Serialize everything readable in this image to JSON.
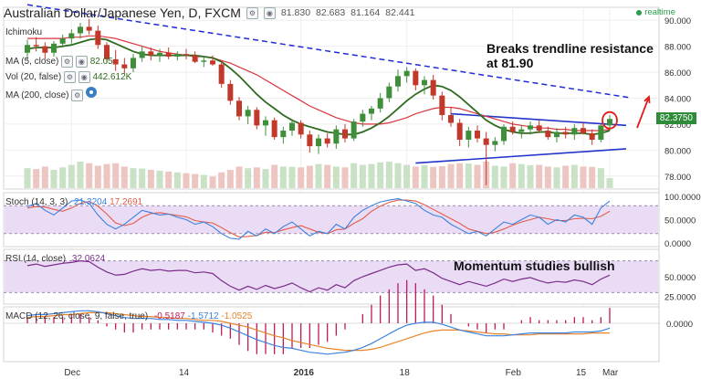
{
  "header": {
    "title": "Australian Dollar/Japanese Yen, D, FXCM",
    "ohlc_values": [
      "81.830",
      "82.683",
      "81.164",
      "82.441"
    ],
    "realtime_label": "realtime"
  },
  "indicator_legends": {
    "ichimoku": "Ichimoku",
    "sma5": "MA (5, close)",
    "sma5_value": "82.05",
    "vol": "Vol (20, false)",
    "vol_value": "442.612K",
    "sma200": "MA (200, close)"
  },
  "annotations": {
    "breakout_line1": "Breaks trendline resistance",
    "breakout_line2": "at 81.90",
    "momentum": "Momentum studies bullish"
  },
  "last_price": "82.3750",
  "colors": {
    "up": "#3f8f3a",
    "down": "#c0392b",
    "ma_green": "#2e6b1f",
    "ma_red": "#d9363e",
    "trend_dashed": "#1f2bd6",
    "trend_solid": "#2234c9",
    "stoch_k": "#3b82e0",
    "stoch_d": "#e25c4a",
    "rsi": "#7a2c8a",
    "macd": "#3b82e0",
    "signal": "#e8842a",
    "hist": "#c2185b",
    "panel_bg": "#eadcf5",
    "arrow": "#e01b1b"
  },
  "chart_data": {
    "type": "candlestick",
    "x_tick_labels": [
      "Dec",
      "14",
      "2016",
      "18",
      "Feb",
      "15",
      "Mar"
    ],
    "candles": [
      [
        87.5,
        88.5,
        86.9,
        88.1
      ],
      [
        88.1,
        88.7,
        87.6,
        88.0
      ],
      [
        88.0,
        88.3,
        87.0,
        87.5
      ],
      [
        87.5,
        88.4,
        87.2,
        88.2
      ],
      [
        88.2,
        88.9,
        87.9,
        88.6
      ],
      [
        88.6,
        89.3,
        88.2,
        89.0
      ],
      [
        89.0,
        89.8,
        88.6,
        89.5
      ],
      [
        89.5,
        90.1,
        88.9,
        89.2
      ],
      [
        89.2,
        89.6,
        87.8,
        88.1
      ],
      [
        88.1,
        88.3,
        86.7,
        87.0
      ],
      [
        87.0,
        87.7,
        86.1,
        86.6
      ],
      [
        86.6,
        87.1,
        85.9,
        86.3
      ],
      [
        86.3,
        87.4,
        86.0,
        87.1
      ],
      [
        87.1,
        88.0,
        86.8,
        87.6
      ],
      [
        87.6,
        87.9,
        86.9,
        87.3
      ],
      [
        87.3,
        87.8,
        86.8,
        87.5
      ],
      [
        87.5,
        87.9,
        87.0,
        87.2
      ],
      [
        87.2,
        87.6,
        86.9,
        87.4
      ],
      [
        87.4,
        87.8,
        87.0,
        87.3
      ],
      [
        87.3,
        87.6,
        86.7,
        86.8
      ],
      [
        86.8,
        87.2,
        86.4,
        86.9
      ],
      [
        86.9,
        87.3,
        86.5,
        86.6
      ],
      [
        86.6,
        86.9,
        84.8,
        85.1
      ],
      [
        85.1,
        85.4,
        83.5,
        83.8
      ],
      [
        83.8,
        84.1,
        82.3,
        82.6
      ],
      [
        82.6,
        83.4,
        82.0,
        83.1
      ],
      [
        83.1,
        83.3,
        81.6,
        81.9
      ],
      [
        81.9,
        82.6,
        81.1,
        82.3
      ],
      [
        82.3,
        82.5,
        80.8,
        81.0
      ],
      [
        81.0,
        81.8,
        80.5,
        81.5
      ],
      [
        81.5,
        82.4,
        81.1,
        82.1
      ],
      [
        82.1,
        82.3,
        80.9,
        81.2
      ],
      [
        81.2,
        81.5,
        79.8,
        80.3
      ],
      [
        80.3,
        81.2,
        79.7,
        80.9
      ],
      [
        80.9,
        81.3,
        80.2,
        80.5
      ],
      [
        80.5,
        81.9,
        80.1,
        81.6
      ],
      [
        81.6,
        82.0,
        80.6,
        80.9
      ],
      [
        80.9,
        82.4,
        80.7,
        82.2
      ],
      [
        82.2,
        83.1,
        81.8,
        82.8
      ],
      [
        82.8,
        83.4,
        82.3,
        83.2
      ],
      [
        83.2,
        84.4,
        82.9,
        84.0
      ],
      [
        84.0,
        85.2,
        83.7,
        84.9
      ],
      [
        84.9,
        86.2,
        84.5,
        85.7
      ],
      [
        85.7,
        86.4,
        85.2,
        86.1
      ],
      [
        86.1,
        86.3,
        84.6,
        85.0
      ],
      [
        85.0,
        85.7,
        84.3,
        85.4
      ],
      [
        85.4,
        85.8,
        83.9,
        84.2
      ],
      [
        84.2,
        84.5,
        82.3,
        82.7
      ],
      [
        82.7,
        83.3,
        81.8,
        82.1
      ],
      [
        82.1,
        82.4,
        80.3,
        80.8
      ],
      [
        80.8,
        81.8,
        80.2,
        81.5
      ],
      [
        81.5,
        81.9,
        80.6,
        80.9
      ],
      [
        80.9,
        81.4,
        77.3,
        80.4
      ],
      [
        80.4,
        81.0,
        79.9,
        80.7
      ],
      [
        80.7,
        82.0,
        80.4,
        81.8
      ],
      [
        81.8,
        82.2,
        81.2,
        81.4
      ],
      [
        81.4,
        81.9,
        80.9,
        81.6
      ],
      [
        81.6,
        82.2,
        81.2,
        81.9
      ],
      [
        81.9,
        82.3,
        81.3,
        81.5
      ],
      [
        81.5,
        81.8,
        80.8,
        81.0
      ],
      [
        81.0,
        81.7,
        80.6,
        81.4
      ],
      [
        81.4,
        81.8,
        80.9,
        81.2
      ],
      [
        81.2,
        82.0,
        80.8,
        81.7
      ],
      [
        81.7,
        82.1,
        81.2,
        81.3
      ],
      [
        81.3,
        81.6,
        80.4,
        80.8
      ],
      [
        80.8,
        82.0,
        80.6,
        81.9
      ],
      [
        81.9,
        82.7,
        81.5,
        82.4
      ]
    ],
    "volume": [
      120,
      115,
      130,
      110,
      125,
      140,
      160,
      150,
      135,
      145,
      150,
      130,
      120,
      118,
      110,
      105,
      100,
      95,
      90,
      85,
      80,
      70,
      95,
      110,
      130,
      120,
      125,
      115,
      140,
      130,
      128,
      125,
      135,
      145,
      140,
      130,
      125,
      150,
      140,
      145,
      155,
      160,
      150,
      140,
      130,
      138,
      128,
      132,
      145,
      150,
      148,
      140,
      160,
      135,
      130,
      150,
      145,
      138,
      140,
      130,
      125,
      135,
      140,
      130,
      128,
      120,
      60
    ],
    "ma_green": [
      87.8,
      87.9,
      87.9,
      87.9,
      88.0,
      88.1,
      88.3,
      88.5,
      88.6,
      88.5,
      88.2,
      87.9,
      87.6,
      87.4,
      87.3,
      87.3,
      87.3,
      87.3,
      87.3,
      87.3,
      87.2,
      87.1,
      86.8,
      86.3,
      85.7,
      85.0,
      84.3,
      83.7,
      83.2,
      82.7,
      82.3,
      82.0,
      81.8,
      81.6,
      81.4,
      81.3,
      81.2,
      81.2,
      81.4,
      81.7,
      82.1,
      82.6,
      83.2,
      83.8,
      84.3,
      84.7,
      85.0,
      84.9,
      84.6,
      84.1,
      83.5,
      82.9,
      82.3,
      81.9,
      81.6,
      81.4,
      81.3,
      81.3,
      81.4,
      81.4,
      81.3,
      81.3,
      81.3,
      81.3,
      81.2,
      81.3,
      81.5
    ],
    "ma_red": [
      88.6,
      88.6,
      88.6,
      88.6,
      88.6,
      88.7,
      88.7,
      88.8,
      88.8,
      88.7,
      88.6,
      88.4,
      88.2,
      88.0,
      87.8,
      87.6,
      87.5,
      87.4,
      87.3,
      87.2,
      87.2,
      87.1,
      86.9,
      86.7,
      86.4,
      86.1,
      85.8,
      85.4,
      85.0,
      84.6,
      84.2,
      83.8,
      83.4,
      83.1,
      82.8,
      82.5,
      82.3,
      82.1,
      82.0,
      82.0,
      82.0,
      82.1,
      82.3,
      82.5,
      82.8,
      83.0,
      83.2,
      83.3,
      83.3,
      83.2,
      83.0,
      82.8,
      82.6,
      82.4,
      82.2,
      82.0,
      81.9,
      81.8,
      81.7,
      81.7,
      81.6,
      81.6,
      81.5,
      81.5,
      81.5,
      81.5,
      81.6
    ],
    "price_axis": {
      "min": 77,
      "max": 91,
      "ticks": [
        "78.000",
        "80.000",
        "82.000",
        "84.000",
        "86.000",
        "88.000",
        "90.000"
      ]
    },
    "trendlines": {
      "dashed_resistance": [
        [
          0,
          91.2
        ],
        [
          66,
          84.0
        ]
      ],
      "upper_triangle": [
        [
          48,
          82.8
        ],
        [
          66,
          81.9
        ]
      ],
      "lower_triangle": [
        [
          44,
          79.0
        ],
        [
          66,
          80.1
        ]
      ]
    },
    "stoch": {
      "label": "Stoch (14, 3, 3)",
      "k_value": "21.3204",
      "d_value": "17.2691",
      "ticks": [
        "0.0000",
        "50.0000",
        "100.0000"
      ],
      "k": [
        78,
        85,
        70,
        60,
        75,
        90,
        92,
        85,
        60,
        40,
        30,
        40,
        55,
        70,
        65,
        60,
        62,
        55,
        50,
        40,
        45,
        35,
        20,
        10,
        8,
        25,
        15,
        30,
        20,
        35,
        45,
        30,
        15,
        25,
        20,
        40,
        30,
        55,
        70,
        80,
        88,
        92,
        95,
        90,
        85,
        70,
        60,
        55,
        40,
        30,
        20,
        25,
        15,
        30,
        45,
        40,
        50,
        60,
        55,
        40,
        50,
        45,
        60,
        55,
        40,
        75,
        90
      ],
      "d": [
        75,
        78,
        77,
        72,
        68,
        75,
        85,
        89,
        79,
        62,
        43,
        37,
        42,
        55,
        63,
        65,
        62,
        59,
        56,
        48,
        45,
        43,
        33,
        22,
        13,
        14,
        16,
        23,
        22,
        28,
        33,
        37,
        30,
        23,
        20,
        28,
        30,
        42,
        52,
        68,
        79,
        87,
        92,
        92,
        90,
        82,
        72,
        62,
        52,
        42,
        30,
        25,
        20,
        23,
        30,
        38,
        45,
        50,
        55,
        52,
        48,
        48,
        52,
        53,
        52,
        57,
        68
      ]
    },
    "rsi": {
      "label": "RSI (14, close)",
      "value": "32.0624",
      "ticks": [
        "25.0000",
        "50.0000"
      ],
      "values": [
        64,
        66,
        63,
        65,
        67,
        68,
        70,
        69,
        62,
        56,
        52,
        53,
        57,
        60,
        58,
        59,
        57,
        58,
        58,
        55,
        56,
        54,
        45,
        38,
        33,
        38,
        34,
        39,
        35,
        38,
        42,
        36,
        31,
        36,
        33,
        40,
        36,
        45,
        50,
        54,
        58,
        62,
        65,
        66,
        58,
        60,
        55,
        48,
        44,
        40,
        44,
        41,
        38,
        42,
        47,
        44,
        47,
        49,
        45,
        42,
        44,
        43,
        46,
        44,
        40,
        47,
        52
      ]
    },
    "macd": {
      "label": "MACD (12, 26, close, 9, false, true)",
      "values_shown": [
        "-0.5187",
        "-1.5712",
        "-1.0525"
      ],
      "ticks": [
        "0.0000"
      ],
      "macd": [
        0.8,
        0.9,
        0.9,
        1.0,
        1.1,
        1.2,
        1.3,
        1.3,
        1.2,
        1.0,
        0.8,
        0.6,
        0.5,
        0.5,
        0.5,
        0.4,
        0.4,
        0.3,
        0.3,
        0.2,
        0.1,
        0.0,
        -0.2,
        -0.5,
        -0.9,
        -1.3,
        -1.7,
        -2.0,
        -2.3,
        -2.5,
        -2.6,
        -2.8,
        -3.0,
        -3.1,
        -3.2,
        -3.1,
        -3.0,
        -2.8,
        -2.5,
        -2.1,
        -1.6,
        -1.1,
        -0.6,
        -0.2,
        0.0,
        0.1,
        0.1,
        -0.1,
        -0.4,
        -0.7,
        -0.9,
        -1.1,
        -1.3,
        -1.3,
        -1.3,
        -1.2,
        -1.1,
        -1.0,
        -1.0,
        -1.0,
        -1.0,
        -1.0,
        -0.9,
        -0.9,
        -0.9,
        -0.8,
        -0.5
      ],
      "signal": [
        0.6,
        0.7,
        0.7,
        0.8,
        0.9,
        0.9,
        1.0,
        1.1,
        1.1,
        1.1,
        1.0,
        0.9,
        0.8,
        0.7,
        0.7,
        0.6,
        0.6,
        0.5,
        0.5,
        0.4,
        0.3,
        0.3,
        0.2,
        0.0,
        -0.2,
        -0.4,
        -0.7,
        -1.0,
        -1.3,
        -1.5,
        -1.8,
        -2.0,
        -2.2,
        -2.4,
        -2.6,
        -2.7,
        -2.8,
        -2.8,
        -2.8,
        -2.7,
        -2.5,
        -2.2,
        -1.9,
        -1.6,
        -1.3,
        -1.0,
        -0.8,
        -0.7,
        -0.7,
        -0.7,
        -0.8,
        -0.9,
        -1.0,
        -1.1,
        -1.1,
        -1.2,
        -1.2,
        -1.2,
        -1.1,
        -1.1,
        -1.1,
        -1.1,
        -1.1,
        -1.1,
        -1.0,
        -1.0,
        -1.0
      ]
    }
  }
}
